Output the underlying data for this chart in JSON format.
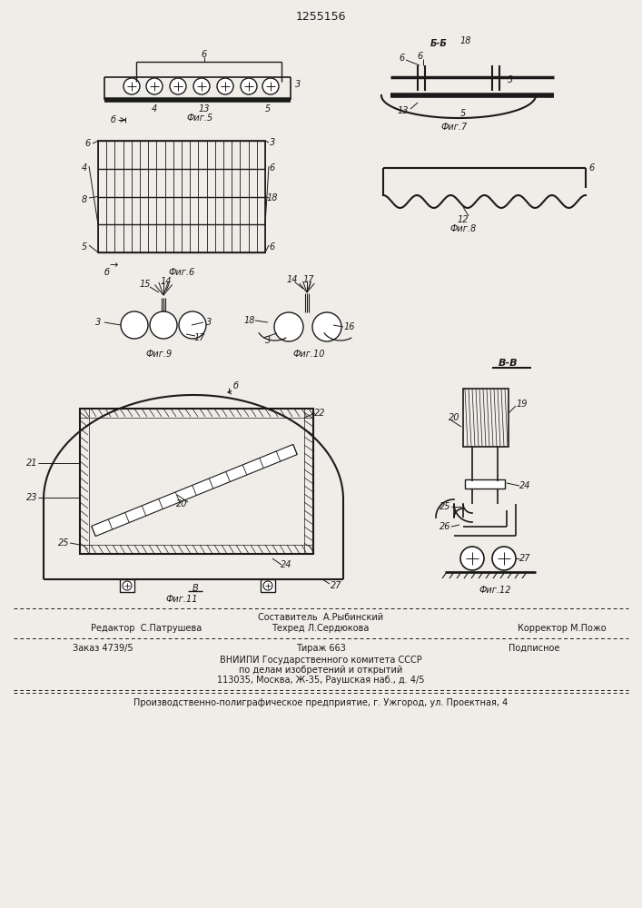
{
  "title_number": "1255156",
  "bg_color": "#f0ede8",
  "line_color": "#1a1a1a",
  "fig_labels": {
    "fig5": "Фиг.5",
    "fig6": "Фиг.6",
    "fig7": "Фиг.7",
    "fig8": "Фиг.8",
    "fig9": "Фиг.9",
    "fig10": "Фиг.10",
    "fig11": "Фиг.11",
    "fig12": "Фиг.12"
  },
  "footer": {
    "editor": "Редактор  С.Патрушева",
    "sostavitel": "Составитель  А.Рыбинский",
    "tehred": "Техред Л.Сердюкова",
    "korrektor": "Корректор М.Пожо",
    "zakaz": "Заказ 4739/5",
    "tirazh": "Тираж 663",
    "podpisnoe": "Подписное",
    "vniipи": "ВНИИПИ Государственного комитета СССР",
    "po_delam": "по делам изобретений и открытий",
    "address": "113035, Москва, Ж-35, Раушская наб., д. 4/5",
    "factory": "Производственно-полиграфическое предприятие, г. Ужгород, ул. Проектная, 4"
  }
}
